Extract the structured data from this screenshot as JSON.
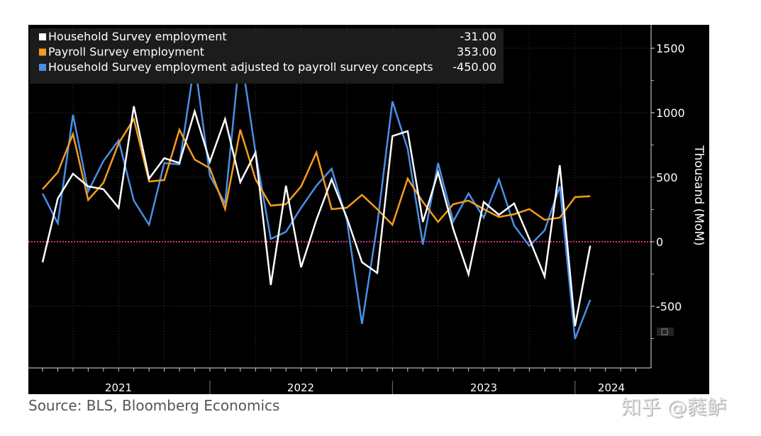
{
  "chart_data": {
    "type": "line",
    "title": "",
    "xlabel": "",
    "ylabel": "Thousand (MoM)",
    "ylim": [
      -1000,
      1600
    ],
    "yticks": [
      -500,
      0,
      500,
      1000,
      1500
    ],
    "x_year_labels": [
      "2021",
      "2022",
      "2023",
      "2024"
    ],
    "x": [
      "2021-01",
      "2021-02",
      "2021-03",
      "2021-04",
      "2021-05",
      "2021-06",
      "2021-07",
      "2021-08",
      "2021-09",
      "2021-10",
      "2021-11",
      "2021-12",
      "2022-01",
      "2022-02",
      "2022-03",
      "2022-04",
      "2022-05",
      "2022-06",
      "2022-07",
      "2022-08",
      "2022-09",
      "2022-10",
      "2022-11",
      "2022-12",
      "2023-01",
      "2023-02",
      "2023-03",
      "2023-04",
      "2023-05",
      "2023-06",
      "2023-07",
      "2023-08",
      "2023-09",
      "2023-10",
      "2023-11",
      "2023-12",
      "2024-01"
    ],
    "grid": true,
    "legend_placement": "top-left",
    "reference_line": 0,
    "series": [
      {
        "name": "Household Survey employment",
        "last_value": "-31.00",
        "color": "#ffffff",
        "values": [
          -159,
          335,
          527,
          429,
          407,
          264,
          1050,
          489,
          648,
          610,
          1011,
          621,
          951,
          462,
          692,
          -335,
          434,
          -198,
          170,
          484,
          187,
          -159,
          -242,
          819,
          857,
          154,
          538,
          99,
          -253,
          308,
          209,
          297,
          22,
          -269,
          593,
          -654,
          -31
        ]
      },
      {
        "name": "Payroll Survey employment",
        "last_value": "353.00",
        "color": "#f39c1f",
        "values": [
          407,
          539,
          835,
          324,
          456,
          764,
          951,
          467,
          478,
          868,
          637,
          571,
          253,
          868,
          484,
          280,
          291,
          429,
          692,
          253,
          264,
          363,
          253,
          132,
          489,
          308,
          154,
          291,
          319,
          253,
          192,
          214,
          253,
          170,
          187,
          346,
          353
        ]
      },
      {
        "name": "Household Survey employment adjusted to payroll survey concepts",
        "last_value": "-450.00",
        "color": "#4a8fe7",
        "values": [
          374,
          143,
          984,
          390,
          626,
          786,
          319,
          132,
          610,
          599,
          1396,
          511,
          297,
          1489,
          690,
          22,
          77,
          264,
          434,
          566,
          170,
          -637,
          132,
          1088,
          720,
          -22,
          610,
          159,
          374,
          187,
          484,
          126,
          -33,
          88,
          429,
          -753,
          -450
        ]
      }
    ]
  },
  "colors": {
    "background": "#000000",
    "zero_line": "#e0308a",
    "legend_bg": "#1c1c1c"
  },
  "source": "Source: BLS, Bloomberg Economics",
  "watermark": "知乎 @蕤鲈"
}
